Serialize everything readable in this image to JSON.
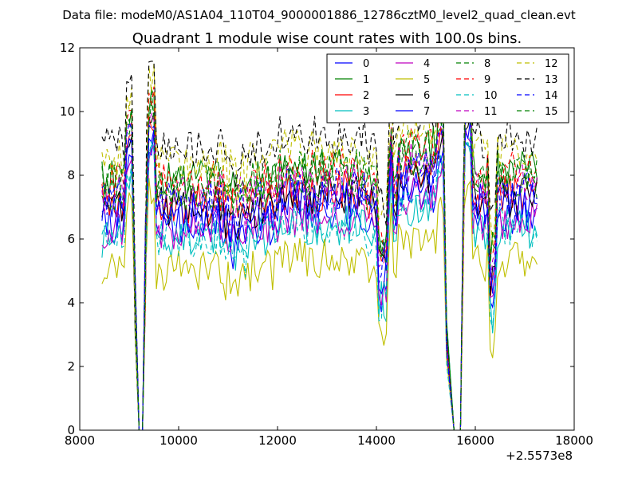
{
  "chart_data": {
    "type": "line",
    "suptitle": "Data file: modeM0/AS1A04_110T04_9000001886_12786cztM0_level2_quad_clean.evt",
    "title": "Quadrant 1 module wise count rates with 100.0s bins.",
    "xlabel": "",
    "ylabel": "",
    "xlim": [
      8000,
      18000
    ],
    "ylim": [
      0,
      12
    ],
    "x_offset_label": "+2.5573e8",
    "xticks": [
      8000,
      10000,
      12000,
      14000,
      16000,
      18000
    ],
    "yticks": [
      0,
      2,
      4,
      6,
      8,
      10,
      12
    ],
    "xtick_labels": [
      "8000",
      "10000",
      "12000",
      "14000",
      "16000",
      "18000"
    ],
    "ytick_labels": [
      "0",
      "2",
      "4",
      "6",
      "8",
      "10",
      "12"
    ],
    "legend_position": "top-right",
    "segments": [
      [
        8450,
        9050
      ],
      [
        9350,
        14250
      ],
      [
        14350,
        15350
      ],
      [
        15800,
        17250
      ]
    ],
    "dips": [
      [
        9200,
        0.0
      ],
      [
        9270,
        0.0
      ],
      [
        15570,
        0.0
      ],
      [
        15700,
        0.0
      ]
    ],
    "series": [
      {
        "name": "0",
        "color": "#0000ff",
        "dash": "solid",
        "base": 6.4
      },
      {
        "name": "1",
        "color": "#008000",
        "dash": "solid",
        "base": 7.9
      },
      {
        "name": "2",
        "color": "#ff0000",
        "dash": "solid",
        "base": 7.1
      },
      {
        "name": "3",
        "color": "#00bfbf",
        "dash": "solid",
        "base": 6.0
      },
      {
        "name": "4",
        "color": "#bf00bf",
        "dash": "solid",
        "base": 6.3
      },
      {
        "name": "5",
        "color": "#bfbf00",
        "dash": "solid",
        "base": 5.0
      },
      {
        "name": "6",
        "color": "#000000",
        "dash": "solid",
        "base": 7.0
      },
      {
        "name": "7",
        "color": "#0000ff",
        "dash": "solid",
        "base": 6.8
      },
      {
        "name": "8",
        "color": "#008000",
        "dash": "dashed",
        "base": 7.5
      },
      {
        "name": "9",
        "color": "#ff0000",
        "dash": "dashed",
        "base": 7.8
      },
      {
        "name": "10",
        "color": "#00bfbf",
        "dash": "dashed",
        "base": 6.1
      },
      {
        "name": "11",
        "color": "#bf00bf",
        "dash": "dashed",
        "base": 7.4
      },
      {
        "name": "12",
        "color": "#bfbf00",
        "dash": "dashed",
        "base": 8.5
      },
      {
        "name": "13",
        "color": "#000000",
        "dash": "dashed",
        "base": 8.9
      },
      {
        "name": "14",
        "color": "#0000ff",
        "dash": "dashed",
        "base": 7.2
      },
      {
        "name": "15",
        "color": "#008000",
        "dash": "dashed",
        "base": 7.8
      }
    ]
  }
}
